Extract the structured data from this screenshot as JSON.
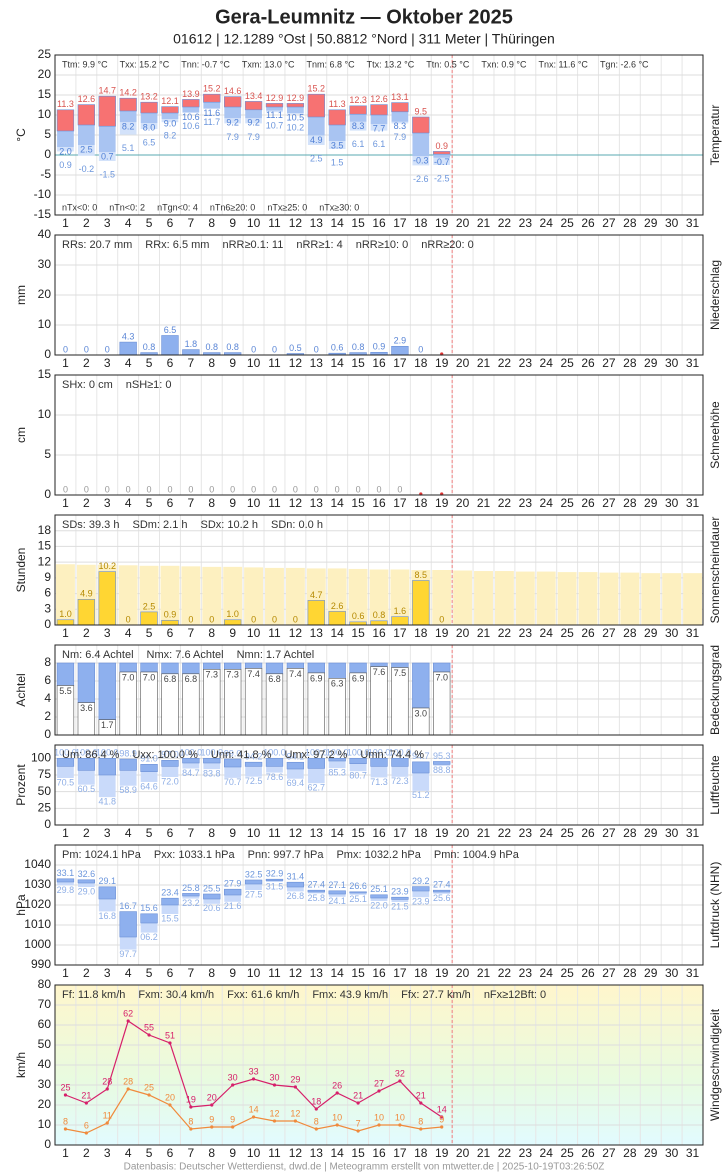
{
  "title": "Gera-Leumnitz  —  Oktober 2025",
  "subtitle": "01612  |  12.1289 °Ost  |  50.8812 °Nord  |  311 Meter  |  Thüringen",
  "footer": "Datenbasis: Deutscher Wetterdienst, dwd.de | Meteogramm erstellt von mtwetter.de | 2025-10-19T03:26:50Z",
  "chart_data": [
    {
      "type": "range",
      "ylabel": "°C",
      "side_label": "Temperatur",
      "ylim": [
        -15,
        25
      ],
      "yticks": [
        -15,
        -10,
        -5,
        0,
        5,
        10,
        15,
        20,
        25
      ],
      "categories": [
        1,
        2,
        3,
        4,
        5,
        6,
        7,
        8,
        9,
        10,
        11,
        12,
        13,
        14,
        15,
        16,
        17,
        18,
        19,
        20,
        21,
        22,
        23,
        24,
        25,
        26,
        27,
        28,
        29,
        30,
        31
      ],
      "stats": [
        "Ttm: 9.9 °C",
        "Txx: 15.2 °C",
        "Tnn: -0.7 °C",
        "Txm: 13.0 °C",
        "Tnm: 6.8 °C",
        "Ttx: 13.2 °C",
        "Ttn: 0.5 °C",
        "Txn: 0.9 °C",
        "Tnx: 11.6 °C",
        "Tgn: -2.6 °C"
      ],
      "stats_bottom": [
        "nTx<0: 0",
        "nTn<0: 2",
        "nTgn<0: 4",
        "nTn6≥20: 0",
        "nTx≥25: 0",
        "nTx≥30: 0"
      ],
      "colors": {
        "high": "#f77272",
        "low": "#a9c4f2",
        "ground": "#d3e2fa",
        "max_label": "#d9534f",
        "min_label": "#4f7fd6",
        "ground_label": "#6c96dc",
        "zero": "#5aa9b0"
      },
      "max": [
        11.3,
        12.6,
        14.7,
        14.2,
        13.2,
        12.1,
        13.9,
        15.2,
        14.6,
        13.4,
        12.9,
        12.9,
        15.2,
        11.3,
        12.3,
        12.6,
        13.1,
        9.5,
        0.9,
        null,
        null,
        null,
        null,
        null,
        null,
        null,
        null,
        null,
        null,
        null,
        null
      ],
      "max_labels": [
        "11.3",
        "12.6",
        "14.7",
        "14.2",
        "13.2",
        "12.1",
        "13.9",
        "15.2",
        "14.6",
        "13.4",
        "12.9",
        "12.9",
        "15.2",
        "11.3",
        "12.3",
        "12.6",
        "13.1",
        "9.5",
        "0.9",
        null,
        null,
        null,
        null,
        null,
        null,
        null,
        null,
        null,
        null,
        null,
        null
      ],
      "mean": [
        6.0,
        7.5,
        7.2,
        11.0,
        10.5,
        10.5,
        12.0,
        13.2,
        12.0,
        11.3,
        12.0,
        12.0,
        9.5,
        7.5,
        10.2,
        10.0,
        10.8,
        5.5,
        0.2,
        null,
        null,
        null,
        null,
        null,
        null,
        null,
        null,
        null,
        null,
        null,
        null
      ],
      "min": [
        2.0,
        2.5,
        0.7,
        8.2,
        8.0,
        9.0,
        10.6,
        11.6,
        9.2,
        9.2,
        11.1,
        10.5,
        4.9,
        3.5,
        8.3,
        7.7,
        8.3,
        -0.3,
        -0.7,
        null,
        null,
        null,
        null,
        null,
        null,
        null,
        null,
        null,
        null,
        null,
        null
      ],
      "min_labels": [
        "2.0",
        "2.5",
        "0.7",
        "8.2",
        "8.0",
        "9.0",
        "10.6",
        "11.6",
        "9.2",
        "9.2",
        "11.1",
        "10.5",
        "4.9",
        "3.5",
        "8.3",
        "7.7",
        "8.3",
        "-0.3",
        "-0.7",
        null,
        null,
        null,
        null,
        null,
        null,
        null,
        null,
        null,
        null,
        null,
        null
      ],
      "ground": [
        0.9,
        -0.2,
        -1.5,
        5.1,
        6.5,
        8.2,
        10.6,
        11.7,
        7.9,
        7.9,
        10.7,
        10.2,
        2.5,
        1.5,
        6.1,
        6.1,
        7.9,
        -2.6,
        -2.5,
        null,
        null,
        null,
        null,
        null,
        null,
        null,
        null,
        null,
        null,
        null,
        null
      ],
      "ground_labels": [
        "0.9",
        "-0.2",
        "-1.5",
        "5.1",
        "6.5",
        "8.2",
        "10.6",
        "11.7",
        "7.9",
        "7.9",
        "10.7",
        "10.2",
        "2.5",
        "1.5",
        "6.1",
        "6.1",
        "7.9",
        "-2.6",
        "-2.5",
        null,
        null,
        null,
        null,
        null,
        null,
        null,
        null,
        null,
        null,
        null,
        null
      ]
    },
    {
      "type": "bar",
      "ylabel": "mm",
      "side_label": "Niederschlag",
      "ylim": [
        0,
        40
      ],
      "yticks": [
        0,
        10,
        20,
        30,
        40
      ],
      "categories": [
        1,
        2,
        3,
        4,
        5,
        6,
        7,
        8,
        9,
        10,
        11,
        12,
        13,
        14,
        15,
        16,
        17,
        18,
        19,
        20,
        21,
        22,
        23,
        24,
        25,
        26,
        27,
        28,
        29,
        30,
        31
      ],
      "stats": [
        "RRs: 20.7 mm",
        "RRx: 6.5 mm",
        "nRR≥0.1: 11",
        "nRR≥1: 4",
        "nRR≥10: 0",
        "nRR≥20: 0"
      ],
      "color": "#8eb0ee",
      "label_color": "#5b86d6",
      "values": [
        0,
        0,
        0,
        4.3,
        0.8,
        6.5,
        1.8,
        0.8,
        0.8,
        0,
        0,
        0.5,
        0,
        0.6,
        0.8,
        0.9,
        2.9,
        0,
        null,
        null,
        null,
        null,
        null,
        null,
        null,
        null,
        null,
        null,
        null,
        null,
        null
      ]
    },
    {
      "type": "bar",
      "ylabel": "cm",
      "side_label": "Schneehöhe",
      "ylim": [
        0,
        15
      ],
      "yticks": [
        0,
        5,
        10,
        15
      ],
      "categories": [
        1,
        2,
        3,
        4,
        5,
        6,
        7,
        8,
        9,
        10,
        11,
        12,
        13,
        14,
        15,
        16,
        17,
        18,
        19,
        20,
        21,
        22,
        23,
        24,
        25,
        26,
        27,
        28,
        29,
        30,
        31
      ],
      "stats": [
        "SHx: 0 cm",
        "nSH≥1: 0"
      ],
      "color": "#8eb0ee",
      "label_color": "#999999",
      "values": [
        0,
        0,
        0,
        0,
        0,
        0,
        0,
        0,
        0,
        0,
        0,
        0,
        0,
        0,
        0,
        0,
        0,
        null,
        null,
        null,
        null,
        null,
        null,
        null,
        null,
        null,
        null,
        null,
        null,
        null,
        null
      ]
    },
    {
      "type": "bar",
      "ylabel": "Stunden",
      "side_label": "Sonnenscheindauer",
      "ylim": [
        0,
        21
      ],
      "yticks": [
        0,
        3,
        6,
        9,
        12,
        15,
        18
      ],
      "categories": [
        1,
        2,
        3,
        4,
        5,
        6,
        7,
        8,
        9,
        10,
        11,
        12,
        13,
        14,
        15,
        16,
        17,
        18,
        19,
        20,
        21,
        22,
        23,
        24,
        25,
        26,
        27,
        28,
        29,
        30,
        31
      ],
      "stats": [
        "SDs: 39.3 h",
        "SDm: 2.1 h",
        "SDx: 10.2 h",
        "SDn: 0.0 h"
      ],
      "color": "#ffd633",
      "label_color": "#b58900",
      "possible_color": "#fdf0c0",
      "possible": [
        11.6,
        11.5,
        11.5,
        11.4,
        11.3,
        11.3,
        11.2,
        11.1,
        11.1,
        11.0,
        10.9,
        10.9,
        10.8,
        10.8,
        10.7,
        10.6,
        10.6,
        10.5,
        10.5,
        10.4,
        10.3,
        10.3,
        10.2,
        10.2,
        10.1,
        10.1,
        10.0,
        10.0,
        9.9,
        9.9,
        9.9
      ],
      "values": [
        1.0,
        4.9,
        10.2,
        0,
        2.5,
        0.9,
        0,
        0,
        1.0,
        0,
        0,
        0,
        4.7,
        2.6,
        0.6,
        0.8,
        1.6,
        8.5,
        0,
        null,
        null,
        null,
        null,
        null,
        null,
        null,
        null,
        null,
        null,
        null,
        null
      ],
      "value_labels": [
        "1.0",
        "4.9",
        "10.2",
        "0",
        "2.5",
        "0.9",
        "0",
        "0",
        "1.0",
        "0",
        "0",
        "0",
        "4.7",
        "2.6",
        "0.6",
        "0.8",
        "1.6",
        "8.5",
        "0",
        null,
        null,
        null,
        null,
        null,
        null,
        null,
        null,
        null,
        null,
        null,
        null
      ]
    },
    {
      "type": "bar",
      "ylabel": "Achtel",
      "side_label": "Bedeckungsgrad",
      "ylim": [
        0,
        10
      ],
      "yticks": [
        0,
        2,
        4,
        6,
        8
      ],
      "stats": [
        "Nm: 6.4 Achtel",
        "Nmx: 7.6 Achtel",
        "Nmn: 1.7 Achtel"
      ],
      "color": "#ffffff",
      "fill_above": "#8eb0ee",
      "full": 8,
      "label_color": "#444444",
      "values": [
        5.5,
        3.6,
        1.7,
        7.0,
        7.0,
        6.8,
        6.8,
        7.3,
        7.3,
        7.4,
        6.8,
        7.4,
        6.9,
        6.3,
        6.9,
        7.6,
        7.5,
        3.0,
        7.0,
        null,
        null,
        null,
        null,
        null,
        null,
        null,
        null,
        null,
        null,
        null,
        null
      ],
      "value_labels": [
        "5.5",
        "3.6",
        "1.7",
        "7.0",
        "7.0",
        "6.8",
        "6.8",
        "7.3",
        "7.3",
        "7.4",
        "6.8",
        "7.4",
        "6.9",
        "6.3",
        "6.9",
        "7.6",
        "7.5",
        "3.0",
        "7.0",
        null,
        null,
        null,
        null,
        null,
        null,
        null,
        null,
        null,
        null,
        null,
        null
      ]
    },
    {
      "type": "range",
      "ylabel": "Prozent",
      "side_label": "Luftfeuchte",
      "ylim": [
        0,
        120
      ],
      "yticks": [
        0,
        25,
        50,
        75,
        100
      ],
      "categories": [
        1,
        2,
        3,
        4,
        5,
        6,
        7,
        8,
        9,
        10,
        11,
        12,
        13,
        14,
        15,
        16,
        17,
        18,
        19,
        20,
        21,
        22,
        23,
        24,
        25,
        26,
        27,
        28,
        29,
        30,
        31
      ],
      "stats": [
        "Um: 86.4 %",
        "Uxx: 100.0 %",
        "Unn: 41.8 %",
        "Umx: 97.2 %",
        "Umn: 74.4 %"
      ],
      "colors": {
        "high": "#8eb0ee",
        "low": "#c9dafa",
        "max_label": "#8eaee6",
        "min_label": "#8eaee6"
      },
      "max": [
        100,
        100,
        100,
        98.9,
        91.0,
        97.0,
        100,
        100,
        99.0,
        94.2,
        100,
        94.1,
        100,
        100,
        100,
        100,
        100,
        94.7,
        95.3,
        null,
        null,
        null,
        null,
        null,
        null,
        null,
        null,
        null,
        null,
        null,
        null
      ],
      "max_labels": [
        "100.0",
        "100.0",
        "100.0",
        "98.9",
        "91.0",
        "97.0",
        "100.0",
        "100.0",
        "99.0",
        "94.2",
        "100.0",
        "94.1",
        "100.0",
        "100.0",
        "100.0",
        "100.0",
        "100.0",
        "94.7",
        "95.3",
        null,
        null,
        null,
        null,
        null,
        null,
        null,
        null,
        null,
        null,
        null,
        null
      ],
      "mean": [
        88,
        82,
        75,
        82,
        80,
        88,
        93,
        93,
        87,
        88,
        88,
        84,
        85,
        96,
        92,
        88,
        88,
        78,
        91,
        null,
        null,
        null,
        null,
        null,
        null,
        null,
        null,
        null,
        null,
        null,
        null
      ],
      "min": [
        70.5,
        60.5,
        41.8,
        58.9,
        64.6,
        72.0,
        84.7,
        83.8,
        70.7,
        72.5,
        78.6,
        69.4,
        62.7,
        85.3,
        80.7,
        71.3,
        72.3,
        51.2,
        88.8,
        null,
        null,
        null,
        null,
        null,
        null,
        null,
        null,
        null,
        null,
        null,
        null
      ],
      "min_labels": [
        "70.5",
        "60.5",
        "41.8",
        "58.9",
        "64.6",
        "72.0",
        "84.7",
        "83.8",
        "70.7",
        "72.5",
        "78.6",
        "69.4",
        "62.7",
        "85.3",
        "80.7",
        "71.3",
        "72.3",
        "51.2",
        "88.8",
        null,
        null,
        null,
        null,
        null,
        null,
        null,
        null,
        null,
        null,
        null,
        null
      ]
    },
    {
      "type": "range",
      "ylabel": "hPa",
      "side_label": "Luftdruck (NHN)",
      "ylim": [
        990,
        1050
      ],
      "yticks": [
        990,
        1000,
        1010,
        1020,
        1030,
        1040
      ],
      "categories": [
        1,
        2,
        3,
        4,
        5,
        6,
        7,
        8,
        9,
        10,
        11,
        12,
        13,
        14,
        15,
        16,
        17,
        18,
        19,
        20,
        21,
        22,
        23,
        24,
        25,
        26,
        27,
        28,
        29,
        30,
        31
      ],
      "stats": [
        "Pm: 1024.1 hPa",
        "Pxx: 1033.1 hPa",
        "Pnn: 997.7 hPa",
        "Pmx: 1032.2 hPa",
        "Pmn: 1004.9 hPa"
      ],
      "colors": {
        "high": "#8eb0ee",
        "low": "#c9dafa",
        "max_label": "#6c96dc",
        "min_label": "#8eaee6"
      },
      "max": [
        1033.1,
        1032.6,
        1029.1,
        1016.7,
        1015.6,
        1023.4,
        1025.8,
        1025.5,
        1027.9,
        1032.5,
        1032.9,
        1031.4,
        1027.4,
        1027.1,
        1026.6,
        1025.1,
        1023.9,
        1029.2,
        1027.4,
        null,
        null,
        null,
        null,
        null,
        null,
        null,
        null,
        null,
        null,
        null,
        null
      ],
      "max_labels": [
        "33.1",
        "32.6",
        "29.1",
        "16.7",
        "15.6",
        "23.4",
        "25.8",
        "25.5",
        "27.9",
        "32.5",
        "32.9",
        "31.4",
        "27.4",
        "27.1",
        "26.6",
        "25.1",
        "23.9",
        "29.2",
        "27.4",
        null,
        null,
        null,
        null,
        null,
        null,
        null,
        null,
        null,
        null,
        null,
        null
      ],
      "mean": [
        1031.5,
        1031,
        1023,
        1004,
        1011,
        1020,
        1024.5,
        1023,
        1025,
        1030.5,
        1032.2,
        1029,
        1026.5,
        1025.5,
        1026,
        1023.5,
        1022.8,
        1027,
        1026.5,
        null,
        null,
        null,
        null,
        null,
        null,
        null,
        null,
        null,
        null,
        null,
        null
      ],
      "min": [
        1029.8,
        1029.0,
        1016.8,
        997.7,
        1006.2,
        1015.5,
        1023.2,
        1020.6,
        1021.6,
        1027.5,
        1031.5,
        1026.8,
        1025.8,
        1024.1,
        1025.1,
        1022.0,
        1021.5,
        1023.9,
        1025.6,
        null,
        null,
        null,
        null,
        null,
        null,
        null,
        null,
        null,
        null,
        null,
        null
      ],
      "min_labels": [
        "29.8",
        "29.0",
        "16.8",
        "97.7",
        "06.2",
        "15.5",
        "23.2",
        "20.6",
        "21.6",
        "27.5",
        "31.5",
        "26.8",
        "25.8",
        "24.1",
        "25.1",
        "22.0",
        "21.5",
        "23.9",
        "25.6",
        null,
        null,
        null,
        null,
        null,
        null,
        null,
        null,
        null,
        null,
        null,
        null
      ]
    },
    {
      "type": "line",
      "ylabel": "km/h",
      "side_label": "Windgeschwindigkeit",
      "ylim": [
        0,
        80
      ],
      "yticks": [
        0,
        10,
        20,
        30,
        40,
        50,
        60,
        70,
        80
      ],
      "categories": [
        1,
        2,
        3,
        4,
        5,
        6,
        7,
        8,
        9,
        10,
        11,
        12,
        13,
        14,
        15,
        16,
        17,
        18,
        19,
        20,
        21,
        22,
        23,
        24,
        25,
        26,
        27,
        28,
        29,
        30,
        31
      ],
      "stats": [
        "Ff: 11.8 km/h",
        "Fxm: 30.4 km/h",
        "Fxx: 61.6 km/h",
        "Fmx: 43.9 km/h",
        "Ffx: 27.7 km/h",
        "nFx≥12Bft: 0"
      ],
      "series": [
        {
          "color": "#d6206a",
          "values": [
            25,
            21,
            28,
            62,
            55,
            51,
            19,
            20,
            30,
            33,
            30,
            29,
            18,
            26,
            21,
            27,
            32,
            21,
            14,
            null,
            null,
            null,
            null,
            null,
            null,
            null,
            null,
            null,
            null,
            null,
            null
          ]
        },
        {
          "color": "#f08a3c",
          "values": [
            8,
            6,
            11,
            28,
            25,
            20,
            8,
            9,
            9,
            14,
            12,
            12,
            8,
            10,
            7,
            10,
            10,
            8,
            9,
            null,
            null,
            null,
            null,
            null,
            null,
            null,
            null,
            null,
            null,
            null,
            null
          ]
        }
      ]
    }
  ]
}
